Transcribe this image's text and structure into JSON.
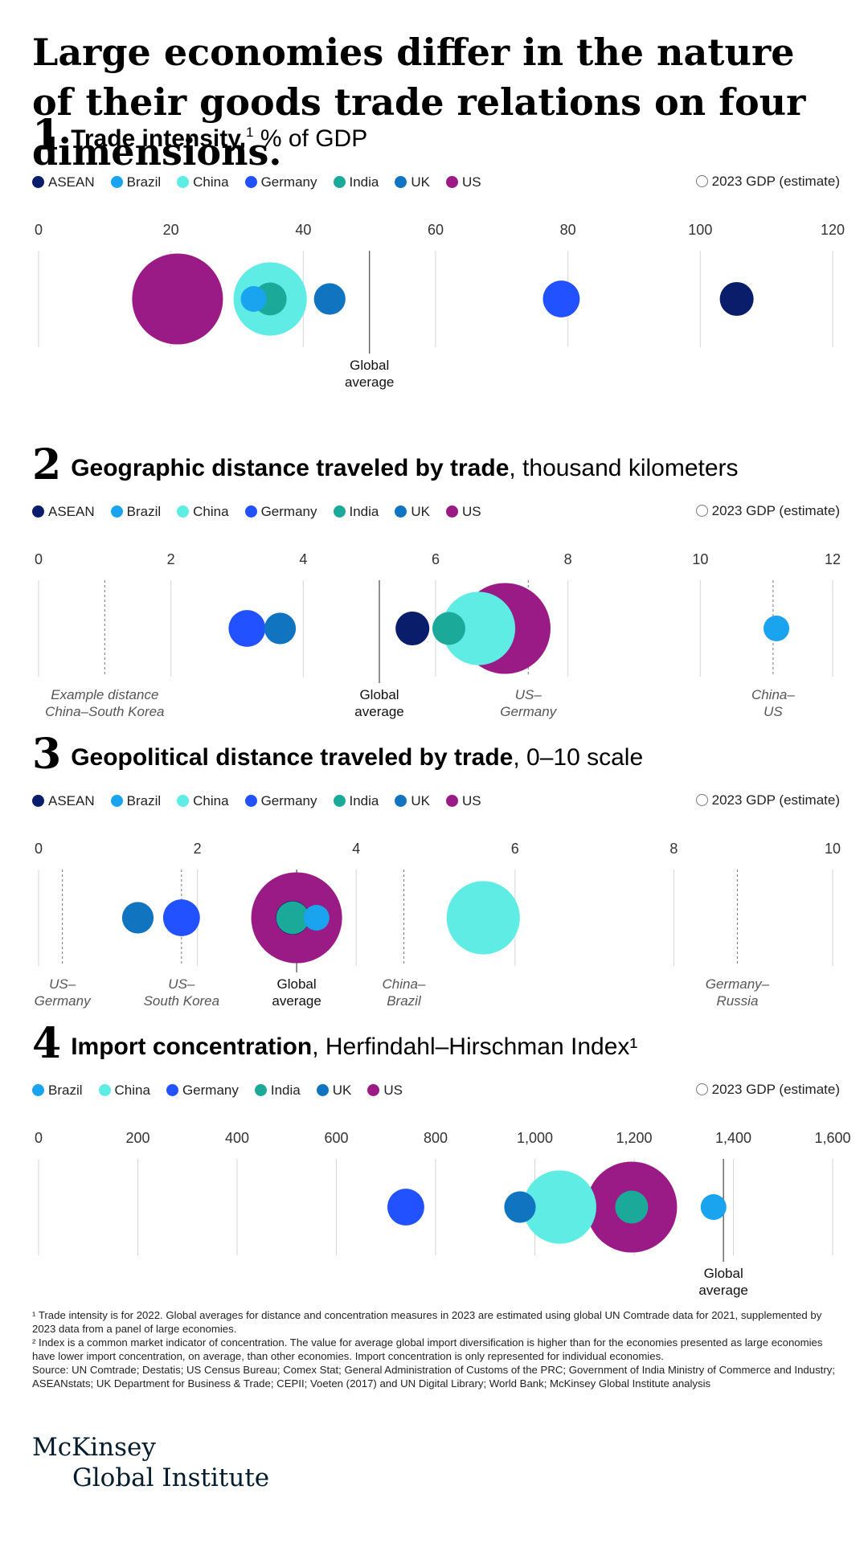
{
  "headline": "Large economies differ in the nature of their goods trade relations on four dimensions.",
  "colors": {
    "ASEAN": "#0a1d6b",
    "Brazil": "#1aa3ee",
    "China": "#5eece4",
    "Germany": "#2251ff",
    "India": "#1ba99a",
    "UK": "#1174c0",
    "US": "#9b1b86"
  },
  "gdp_legend": "2023 GDP (estimate)",
  "sections": [
    {
      "number": "1",
      "title": "Trade intensity,",
      "sup": "1",
      "unit": " % of GDP",
      "legend": [
        "ASEAN",
        "Brazil",
        "China",
        "Germany",
        "India",
        "UK",
        "US"
      ]
    },
    {
      "number": "2",
      "title": "Geographic distance traveled by trade",
      "sup": "",
      "unit": ", thousand kilometers",
      "legend": [
        "ASEAN",
        "Brazil",
        "China",
        "Germany",
        "India",
        "UK",
        "US"
      ]
    },
    {
      "number": "3",
      "title": "Geopolitical distance traveled by trade",
      "sup": "",
      "unit": ", 0–10 scale",
      "legend": [
        "ASEAN",
        "Brazil",
        "China",
        "Germany",
        "India",
        "UK",
        "US"
      ]
    },
    {
      "number": "4",
      "title": "Import concentration",
      "sup": "",
      "unit": ", Herfindahl–Hirschman Index¹",
      "legend": [
        "Brazil",
        "China",
        "Germany",
        "India",
        "UK",
        "US"
      ]
    }
  ],
  "chart_data": [
    {
      "type": "scatter",
      "title": "Trade intensity, % of GDP",
      "xlim": [
        0,
        120
      ],
      "ticks": [
        0,
        20,
        40,
        60,
        80,
        100,
        120
      ],
      "tick_labels": [
        "0",
        "20",
        "40",
        "60",
        "80",
        "100",
        "120"
      ],
      "size_encoding": "2023 GDP (estimate)",
      "points": [
        {
          "name": "US",
          "x": 21,
          "gdp": 27.4
        },
        {
          "name": "China",
          "x": 35,
          "gdp": 17.8
        },
        {
          "name": "India",
          "x": 35,
          "gdp": 3.6
        },
        {
          "name": "Brazil",
          "x": 32.5,
          "gdp": 2.2
        },
        {
          "name": "UK",
          "x": 44,
          "gdp": 3.3
        },
        {
          "name": "Germany",
          "x": 79,
          "gdp": 4.5
        },
        {
          "name": "ASEAN",
          "x": 105.5,
          "gdp": 3.8
        }
      ],
      "references": [
        {
          "x": 50,
          "label_lines": [
            "Global",
            "average"
          ],
          "style": "solid"
        }
      ]
    },
    {
      "type": "scatter",
      "title": "Geographic distance traveled by trade, thousand kilometers",
      "xlim": [
        0,
        12
      ],
      "ticks": [
        0,
        2,
        4,
        6,
        8,
        10,
        12
      ],
      "tick_labels": [
        "0",
        "2",
        "4",
        "6",
        "8",
        "10",
        "12"
      ],
      "size_encoding": "2023 GDP (estimate)",
      "points": [
        {
          "name": "Germany",
          "x": 3.15,
          "gdp": 4.5
        },
        {
          "name": "UK",
          "x": 3.65,
          "gdp": 3.3
        },
        {
          "name": "ASEAN",
          "x": 5.65,
          "gdp": 3.8
        },
        {
          "name": "India",
          "x": 6.2,
          "gdp": 3.6
        },
        {
          "name": "China",
          "x": 6.65,
          "gdp": 17.8
        },
        {
          "name": "US",
          "x": 7.05,
          "gdp": 27.4
        },
        {
          "name": "Brazil",
          "x": 11.15,
          "gdp": 2.2
        }
      ],
      "references": [
        {
          "x": 1.0,
          "label_lines": [
            "Example distance",
            "China–South Korea"
          ],
          "style": "dashed"
        },
        {
          "x": 5.15,
          "label_lines": [
            "Global",
            "average"
          ],
          "style": "solid"
        },
        {
          "x": 7.4,
          "label_lines": [
            "US–",
            "Germany"
          ],
          "style": "dashed"
        },
        {
          "x": 11.1,
          "label_lines": [
            "China–",
            "US"
          ],
          "style": "dashed"
        }
      ]
    },
    {
      "type": "scatter",
      "title": "Geopolitical distance traveled by trade, 0–10 scale",
      "xlim": [
        0,
        10
      ],
      "ticks": [
        0,
        2,
        4,
        6,
        8,
        10
      ],
      "tick_labels": [
        "0",
        "2",
        "4",
        "6",
        "8",
        "10"
      ],
      "size_encoding": "2023 GDP (estimate)",
      "points": [
        {
          "name": "UK",
          "x": 1.25,
          "gdp": 3.3
        },
        {
          "name": "Germany",
          "x": 1.8,
          "gdp": 4.5
        },
        {
          "name": "US",
          "x": 3.25,
          "gdp": 27.4
        },
        {
          "name": "ASEAN",
          "x": 3.2,
          "gdp": 3.8
        },
        {
          "name": "India",
          "x": 3.2,
          "gdp": 3.6
        },
        {
          "name": "Brazil",
          "x": 3.5,
          "gdp": 2.2
        },
        {
          "name": "China",
          "x": 5.6,
          "gdp": 17.8
        }
      ],
      "references": [
        {
          "x": 0.3,
          "label_lines": [
            "US–",
            "Germany"
          ],
          "style": "dashed"
        },
        {
          "x": 1.8,
          "label_lines": [
            "US–",
            "South Korea"
          ],
          "style": "dashed"
        },
        {
          "x": 3.25,
          "label_lines": [
            "Global",
            "average"
          ],
          "style": "solid"
        },
        {
          "x": 4.6,
          "label_lines": [
            "China–",
            "Brazil"
          ],
          "style": "dashed"
        },
        {
          "x": 8.8,
          "label_lines": [
            "Germany–",
            "Russia"
          ],
          "style": "dashed"
        }
      ]
    },
    {
      "type": "scatter",
      "title": "Import concentration, Herfindahl–Hirschman Index",
      "xlim": [
        0,
        1600
      ],
      "ticks": [
        0,
        200,
        400,
        600,
        800,
        1000,
        1200,
        1400,
        1600
      ],
      "tick_labels": [
        "0",
        "200",
        "400",
        "600",
        "800",
        "1,000",
        "1,200",
        "1,400",
        "1,600"
      ],
      "size_encoding": "2023 GDP (estimate)",
      "points": [
        {
          "name": "Germany",
          "x": 740,
          "gdp": 4.5
        },
        {
          "name": "UK",
          "x": 970,
          "gdp": 3.3
        },
        {
          "name": "China",
          "x": 1050,
          "gdp": 17.8
        },
        {
          "name": "US",
          "x": 1195,
          "gdp": 27.4
        },
        {
          "name": "India",
          "x": 1195,
          "gdp": 3.6
        },
        {
          "name": "Brazil",
          "x": 1360,
          "gdp": 2.2
        }
      ],
      "references": [
        {
          "x": 1380,
          "label_lines": [
            "Global",
            "average"
          ],
          "style": "solid"
        }
      ]
    }
  ],
  "footnotes": [
    "¹ Trade intensity is for 2022. Global averages for distance and concentration measures in 2023 are estimated using global UN Comtrade data for 2021, supplemented by 2023 data from a panel of large economies.",
    "² Index is a common market indicator of concentration. The value for average global import diversification is higher than for the economies presented as large economies have lower import concentration, on average, than other economies. Import concentration is only represented for individual economies.",
    "Source: UN Comtrade; Destatis; US Census Bureau; Comex Stat; General Administration of Customs of the PRC; Government of India Ministry of Commerce and Industry; ASEANstats; UK Department for Business & Trade; CEPII; Voeten (2017) and UN Digital Library; World Bank; McKinsey Global Institute analysis"
  ],
  "logo": {
    "line1": "McKinsey",
    "line2": "Global Institute"
  }
}
